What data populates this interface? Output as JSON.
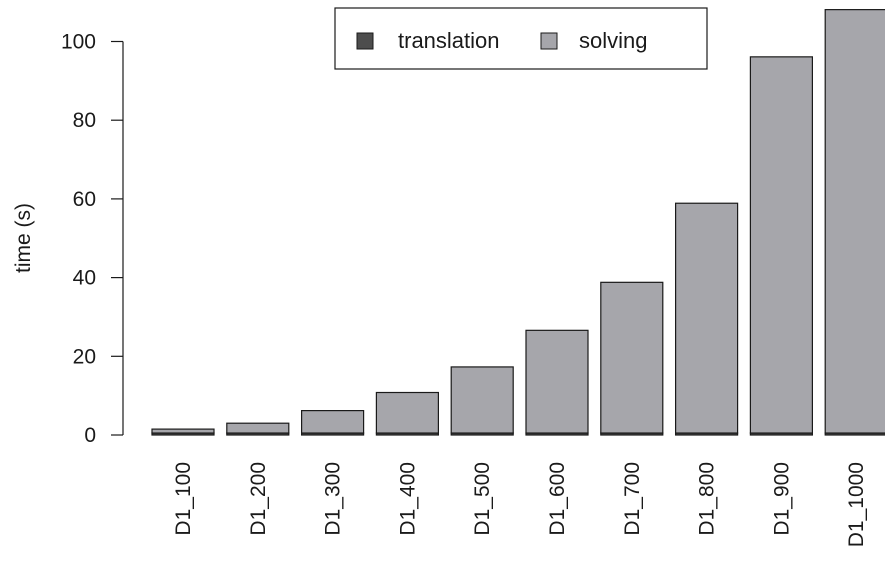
{
  "chart_data": {
    "type": "bar",
    "stacked": true,
    "categories": [
      "D1_100",
      "D1_200",
      "D1_300",
      "D1_400",
      "D1_500",
      "D1_600",
      "D1_700",
      "D1_800",
      "D1_900",
      "D1_1000"
    ],
    "series": [
      {
        "name": "translation",
        "color": "#4d4d4d",
        "values": [
          0.5,
          0.5,
          0.5,
          0.5,
          0.5,
          0.5,
          0.5,
          0.5,
          0.5,
          0.5
        ]
      },
      {
        "name": "solving",
        "color": "#a6a6ab",
        "values": [
          1.0,
          2.5,
          5.7,
          10.3,
          16.8,
          26.1,
          38.3,
          58.4,
          95.6,
          107.6
        ]
      }
    ],
    "ylabel": "time (s)",
    "xlabel": "",
    "yticks": [
      0,
      20,
      40,
      60,
      80,
      100
    ],
    "ylim": [
      0,
      108
    ],
    "legend": "top-center",
    "grid": false
  }
}
